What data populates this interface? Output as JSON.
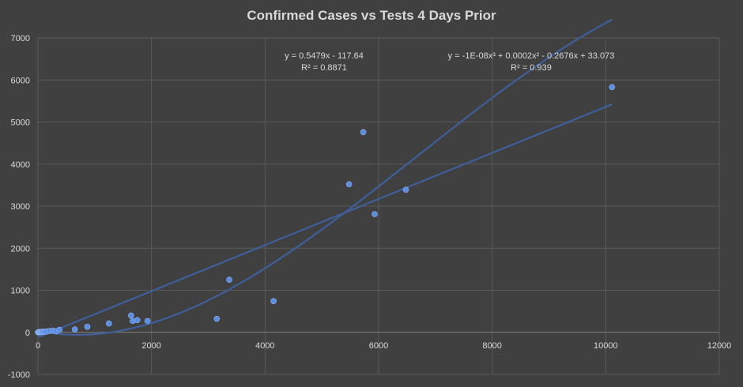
{
  "chart_data": {
    "type": "scatter",
    "title": "Confirmed Cases vs Tests 4 Days Prior",
    "xlim": [
      0,
      12000
    ],
    "ylim": [
      -1000,
      7000
    ],
    "x_ticks": [
      0,
      2000,
      4000,
      6000,
      8000,
      10000,
      12000
    ],
    "y_ticks": [
      -1000,
      0,
      1000,
      2000,
      3000,
      4000,
      5000,
      6000,
      7000
    ],
    "x_tick_labels": [
      "0",
      "2000",
      "4000",
      "6000",
      "8000",
      "10000",
      "12000"
    ],
    "y_tick_labels": [
      "-1000",
      "0",
      "1000",
      "2000",
      "3000",
      "4000",
      "5000",
      "6000",
      "7000"
    ],
    "grid": true,
    "colors": {
      "background": "#404040",
      "grid": "#5a5a5a",
      "points": "#5b8de0",
      "trendline": "#3f5f9a",
      "text": "#d9d9d9"
    },
    "points": [
      {
        "x": 0,
        "y": 0
      },
      {
        "x": 10,
        "y": 2
      },
      {
        "x": 20,
        "y": 3
      },
      {
        "x": 30,
        "y": 5
      },
      {
        "x": 40,
        "y": 4
      },
      {
        "x": 50,
        "y": 8
      },
      {
        "x": 60,
        "y": 10
      },
      {
        "x": 70,
        "y": 6
      },
      {
        "x": 80,
        "y": 12
      },
      {
        "x": 100,
        "y": 15
      },
      {
        "x": 120,
        "y": 10
      },
      {
        "x": 150,
        "y": 20
      },
      {
        "x": 200,
        "y": 30
      },
      {
        "x": 260,
        "y": 40
      },
      {
        "x": 320,
        "y": 25
      },
      {
        "x": 380,
        "y": 60
      },
      {
        "x": 650,
        "y": 70
      },
      {
        "x": 870,
        "y": 130
      },
      {
        "x": 1250,
        "y": 210
      },
      {
        "x": 1640,
        "y": 400
      },
      {
        "x": 1670,
        "y": 270
      },
      {
        "x": 1750,
        "y": 290
      },
      {
        "x": 1930,
        "y": 270
      },
      {
        "x": 3150,
        "y": 320
      },
      {
        "x": 3370,
        "y": 1250
      },
      {
        "x": 4150,
        "y": 740
      },
      {
        "x": 5480,
        "y": 3520
      },
      {
        "x": 5730,
        "y": 4760
      },
      {
        "x": 5930,
        "y": 2810
      },
      {
        "x": 6480,
        "y": 3390
      },
      {
        "x": 10110,
        "y": 5830
      }
    ],
    "trendlines": [
      {
        "type": "linear",
        "slope": 0.5479,
        "intercept": -117.64,
        "x_range": [
          0,
          10110
        ],
        "equation": "y = 0.5479x - 117.64",
        "r2": "R² = 0.8871"
      },
      {
        "type": "polynomial",
        "coefficients": [
          -1e-08,
          0.0002,
          -0.2676,
          33.073
        ],
        "x_range": [
          0,
          10110
        ],
        "equation": "y = -1E-08x³ + 0.0002x² - 0.2676x + 33.073",
        "r2": "R² = 0.939"
      }
    ]
  }
}
